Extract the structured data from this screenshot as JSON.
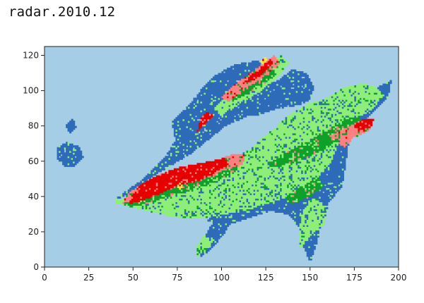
{
  "chart_data": {
    "type": "heatmap",
    "title": "radar.2010.12",
    "xlabel": "",
    "ylabel": "",
    "xlim": [
      0,
      200
    ],
    "ylim": [
      0,
      125
    ],
    "x_ticks": [
      0,
      25,
      50,
      75,
      100,
      125,
      150,
      175,
      200
    ],
    "y_ticks": [
      0,
      20,
      40,
      60,
      80,
      100,
      120
    ],
    "grid": false,
    "legend": "none",
    "colors": {
      "background": "#a6cde6",
      "low": "#2e6bb8",
      "light": "#8fee7a",
      "mid": "#0fa02a",
      "high_pink": "#ff8080",
      "high_red": "#e60000",
      "peak": "#ffe24a"
    },
    "regions": [
      {
        "level": "low",
        "polygon": [
          [
            38,
            37
          ],
          [
            48,
            42
          ],
          [
            62,
            52
          ],
          [
            72,
            58
          ],
          [
            82,
            64
          ],
          [
            92,
            72
          ],
          [
            102,
            80
          ],
          [
            115,
            86
          ],
          [
            125,
            92
          ],
          [
            130,
            100
          ],
          [
            128,
            112
          ],
          [
            120,
            117
          ],
          [
            108,
            115
          ],
          [
            95,
            108
          ],
          [
            88,
            100
          ],
          [
            80,
            90
          ],
          [
            72,
            82
          ],
          [
            74,
            72
          ],
          [
            68,
            62
          ],
          [
            58,
            52
          ],
          [
            50,
            46
          ],
          [
            42,
            40
          ]
        ]
      },
      {
        "level": "low",
        "polygon": [
          [
            92,
            26
          ],
          [
            100,
            35
          ],
          [
            115,
            45
          ],
          [
            128,
            55
          ],
          [
            140,
            66
          ],
          [
            150,
            76
          ],
          [
            162,
            84
          ],
          [
            172,
            90
          ],
          [
            182,
            96
          ],
          [
            190,
            103
          ],
          [
            196,
            106
          ],
          [
            194,
            96
          ],
          [
            186,
            88
          ],
          [
            178,
            80
          ],
          [
            172,
            72
          ],
          [
            170,
            58
          ],
          [
            168,
            46
          ],
          [
            160,
            36
          ],
          [
            156,
            26
          ],
          [
            154,
            14
          ],
          [
            150,
            3
          ],
          [
            146,
            12
          ],
          [
            144,
            22
          ],
          [
            138,
            30
          ],
          [
            128,
            32
          ],
          [
            115,
            28
          ],
          [
            104,
            24
          ]
        ]
      },
      {
        "level": "low",
        "polygon": [
          [
            88,
            6
          ],
          [
            94,
            10
          ],
          [
            102,
            20
          ],
          [
            108,
            30
          ],
          [
            112,
            36
          ],
          [
            104,
            36
          ],
          [
            98,
            30
          ],
          [
            92,
            20
          ],
          [
            88,
            12
          ]
        ]
      },
      {
        "level": "low",
        "polygon": [
          [
            102,
            90
          ],
          [
            112,
            94
          ],
          [
            122,
            100
          ],
          [
            132,
            106
          ],
          [
            140,
            112
          ],
          [
            148,
            110
          ],
          [
            152,
            102
          ],
          [
            150,
            95
          ],
          [
            144,
            92
          ],
          [
            132,
            90
          ],
          [
            120,
            86
          ],
          [
            110,
            86
          ]
        ]
      },
      {
        "level": "low",
        "polygon": [
          [
            7,
            68
          ],
          [
            13,
            71
          ],
          [
            20,
            68
          ],
          [
            22,
            62
          ],
          [
            17,
            57
          ],
          [
            11,
            57
          ],
          [
            7,
            62
          ]
        ]
      },
      {
        "level": "low",
        "polygon": [
          [
            12,
            80
          ],
          [
            16,
            84
          ],
          [
            18,
            79
          ],
          [
            14,
            76
          ]
        ]
      },
      {
        "level": "light",
        "polygon": [
          [
            38,
            37
          ],
          [
            46,
            39
          ],
          [
            58,
            46
          ],
          [
            72,
            52
          ],
          [
            88,
            56
          ],
          [
            102,
            60
          ],
          [
            115,
            66
          ],
          [
            124,
            74
          ],
          [
            132,
            80
          ],
          [
            138,
            86
          ],
          [
            148,
            92
          ],
          [
            160,
            96
          ],
          [
            170,
            102
          ],
          [
            180,
            104
          ],
          [
            188,
            102
          ],
          [
            192,
            98
          ],
          [
            186,
            90
          ],
          [
            176,
            84
          ],
          [
            168,
            80
          ],
          [
            166,
            70
          ],
          [
            162,
            60
          ],
          [
            154,
            50
          ],
          [
            146,
            44
          ],
          [
            138,
            40
          ],
          [
            126,
            36
          ],
          [
            114,
            32
          ],
          [
            100,
            30
          ],
          [
            90,
            28
          ],
          [
            78,
            28
          ],
          [
            66,
            30
          ],
          [
            54,
            33
          ],
          [
            46,
            35
          ]
        ]
      },
      {
        "level": "light",
        "polygon": [
          [
            96,
            90
          ],
          [
            106,
            100
          ],
          [
            116,
            108
          ],
          [
            126,
            116
          ],
          [
            134,
            120
          ],
          [
            138,
            116
          ],
          [
            132,
            108
          ],
          [
            122,
            100
          ],
          [
            110,
            92
          ],
          [
            100,
            86
          ]
        ]
      },
      {
        "level": "light",
        "polygon": [
          [
            144,
            10
          ],
          [
            150,
            18
          ],
          [
            158,
            24
          ],
          [
            160,
            34
          ],
          [
            152,
            40
          ],
          [
            146,
            32
          ],
          [
            144,
            22
          ]
        ]
      },
      {
        "level": "light",
        "polygon": [
          [
            86,
            6
          ],
          [
            92,
            10
          ],
          [
            96,
            16
          ],
          [
            90,
            18
          ],
          [
            86,
            12
          ]
        ]
      },
      {
        "level": "mid",
        "polygon": [
          [
            44,
            36
          ],
          [
            54,
            40
          ],
          [
            66,
            46
          ],
          [
            78,
            50
          ],
          [
            92,
            54
          ],
          [
            104,
            58
          ],
          [
            112,
            62
          ],
          [
            108,
            54
          ],
          [
            96,
            48
          ],
          [
            84,
            44
          ],
          [
            70,
            40
          ],
          [
            58,
            36
          ],
          [
            48,
            34
          ]
        ]
      },
      {
        "level": "mid",
        "polygon": [
          [
            126,
            60
          ],
          [
            138,
            66
          ],
          [
            150,
            72
          ],
          [
            160,
            78
          ],
          [
            170,
            84
          ],
          [
            178,
            86
          ],
          [
            180,
            80
          ],
          [
            170,
            74
          ],
          [
            160,
            68
          ],
          [
            148,
            62
          ],
          [
            136,
            58
          ],
          [
            128,
            56
          ]
        ]
      },
      {
        "level": "mid",
        "polygon": [
          [
            104,
            98
          ],
          [
            112,
            104
          ],
          [
            120,
            110
          ],
          [
            128,
            114
          ],
          [
            132,
            110
          ],
          [
            124,
            104
          ],
          [
            114,
            98
          ],
          [
            106,
            94
          ]
        ]
      },
      {
        "level": "mid",
        "polygon": [
          [
            136,
            40
          ],
          [
            146,
            46
          ],
          [
            154,
            52
          ],
          [
            158,
            46
          ],
          [
            150,
            40
          ],
          [
            140,
            36
          ]
        ]
      },
      {
        "level": "high_pink",
        "polygon": [
          [
            44,
            36
          ],
          [
            52,
            38
          ],
          [
            62,
            42
          ],
          [
            72,
            46
          ],
          [
            84,
            48
          ],
          [
            96,
            52
          ],
          [
            104,
            56
          ],
          [
            112,
            58
          ],
          [
            114,
            64
          ],
          [
            106,
            64
          ],
          [
            96,
            60
          ],
          [
            84,
            56
          ],
          [
            72,
            54
          ],
          [
            60,
            50
          ],
          [
            50,
            44
          ],
          [
            46,
            40
          ]
        ]
      },
      {
        "level": "high_red",
        "polygon": [
          [
            48,
            36
          ],
          [
            56,
            38
          ],
          [
            66,
            42
          ],
          [
            74,
            46
          ],
          [
            84,
            48
          ],
          [
            94,
            52
          ],
          [
            100,
            56
          ],
          [
            104,
            58
          ],
          [
            102,
            62
          ],
          [
            94,
            60
          ],
          [
            84,
            58
          ],
          [
            74,
            56
          ],
          [
            64,
            52
          ],
          [
            56,
            48
          ],
          [
            50,
            42
          ]
        ]
      },
      {
        "level": "high_pink",
        "polygon": [
          [
            100,
            96
          ],
          [
            108,
            104
          ],
          [
            116,
            110
          ],
          [
            124,
            116
          ],
          [
            130,
            120
          ],
          [
            134,
            116
          ],
          [
            126,
            110
          ],
          [
            118,
            104
          ],
          [
            110,
            98
          ],
          [
            104,
            94
          ]
        ]
      },
      {
        "level": "high_red",
        "polygon": [
          [
            112,
            104
          ],
          [
            118,
            110
          ],
          [
            124,
            114
          ],
          [
            128,
            118
          ],
          [
            130,
            116
          ],
          [
            124,
            110
          ],
          [
            118,
            106
          ]
        ]
      },
      {
        "level": "high_pink",
        "polygon": [
          [
            160,
            74
          ],
          [
            168,
            78
          ],
          [
            176,
            82
          ],
          [
            184,
            84
          ],
          [
            184,
            78
          ],
          [
            176,
            74
          ],
          [
            168,
            72
          ]
        ]
      },
      {
        "level": "high_red",
        "polygon": [
          [
            174,
            80
          ],
          [
            180,
            84
          ],
          [
            186,
            84
          ],
          [
            184,
            79
          ],
          [
            178,
            78
          ]
        ]
      },
      {
        "level": "high_pink",
        "polygon": [
          [
            166,
            70
          ],
          [
            170,
            76
          ],
          [
            174,
            72
          ],
          [
            170,
            68
          ]
        ]
      },
      {
        "level": "high_red",
        "polygon": [
          [
            86,
            76
          ],
          [
            92,
            82
          ],
          [
            96,
            86
          ],
          [
            92,
            88
          ],
          [
            88,
            84
          ]
        ]
      },
      {
        "level": "peak",
        "polygon": [
          [
            75,
            46
          ],
          [
            77,
            48
          ],
          [
            79,
            46
          ],
          [
            77,
            44
          ]
        ]
      },
      {
        "level": "peak",
        "polygon": [
          [
            122,
            117
          ],
          [
            125,
            119
          ],
          [
            126,
            117
          ],
          [
            124,
            115
          ]
        ]
      }
    ]
  }
}
